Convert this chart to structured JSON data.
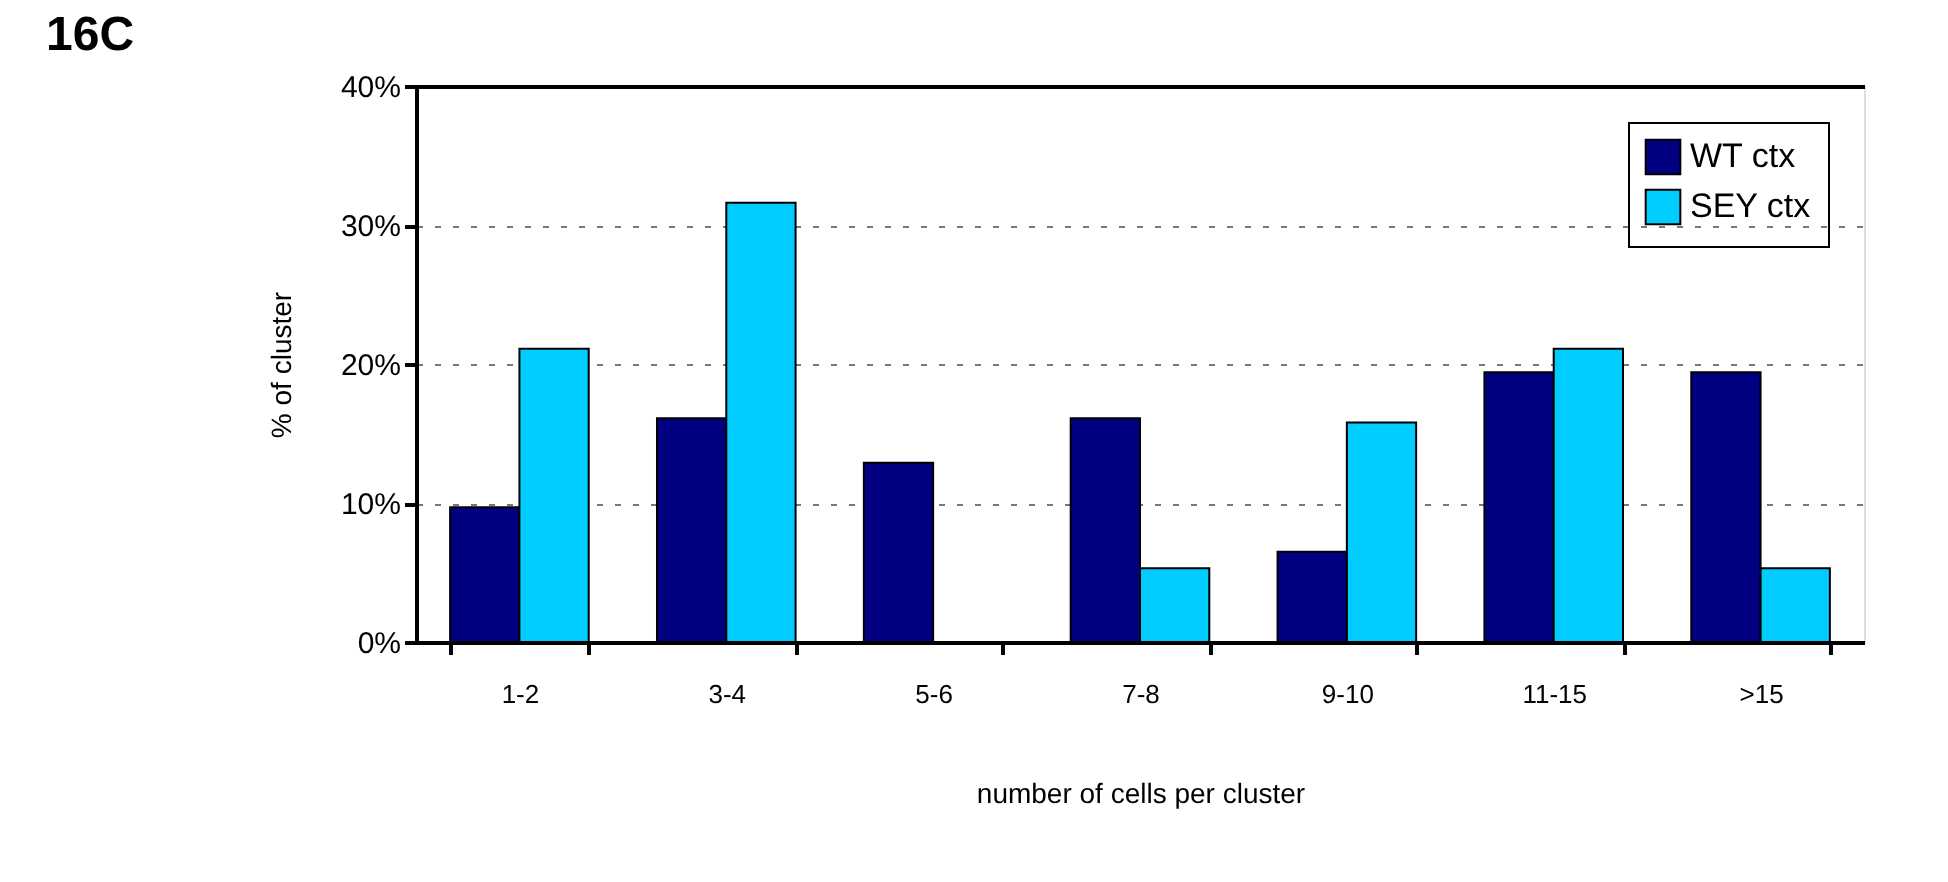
{
  "chart_data": {
    "type": "bar",
    "title": "16C",
    "xlabel": "number of cells per cluster",
    "ylabel": "% of cluster",
    "categories": [
      "1-2",
      "3-4",
      "5-6",
      "7-8",
      "9-10",
      "11-15",
      ">15"
    ],
    "series": [
      {
        "name": "WT ctx",
        "color": "#000080",
        "values": [
          9.7,
          16.1,
          12.9,
          16.1,
          6.5,
          19.4,
          19.4
        ]
      },
      {
        "name": "SEY ctx",
        "color": "#00ccff",
        "values": [
          21.1,
          31.6,
          0,
          5.3,
          15.8,
          21.1,
          5.3
        ]
      }
    ],
    "ylim": [
      0,
      40
    ],
    "yticks": [
      {
        "value": 0,
        "label": "0%"
      },
      {
        "value": 10,
        "label": "10%"
      },
      {
        "value": 20,
        "label": "20%"
      },
      {
        "value": 30,
        "label": "30%"
      },
      {
        "value": 40,
        "label": "40%"
      }
    ],
    "grid": "y",
    "legend": "top right"
  }
}
